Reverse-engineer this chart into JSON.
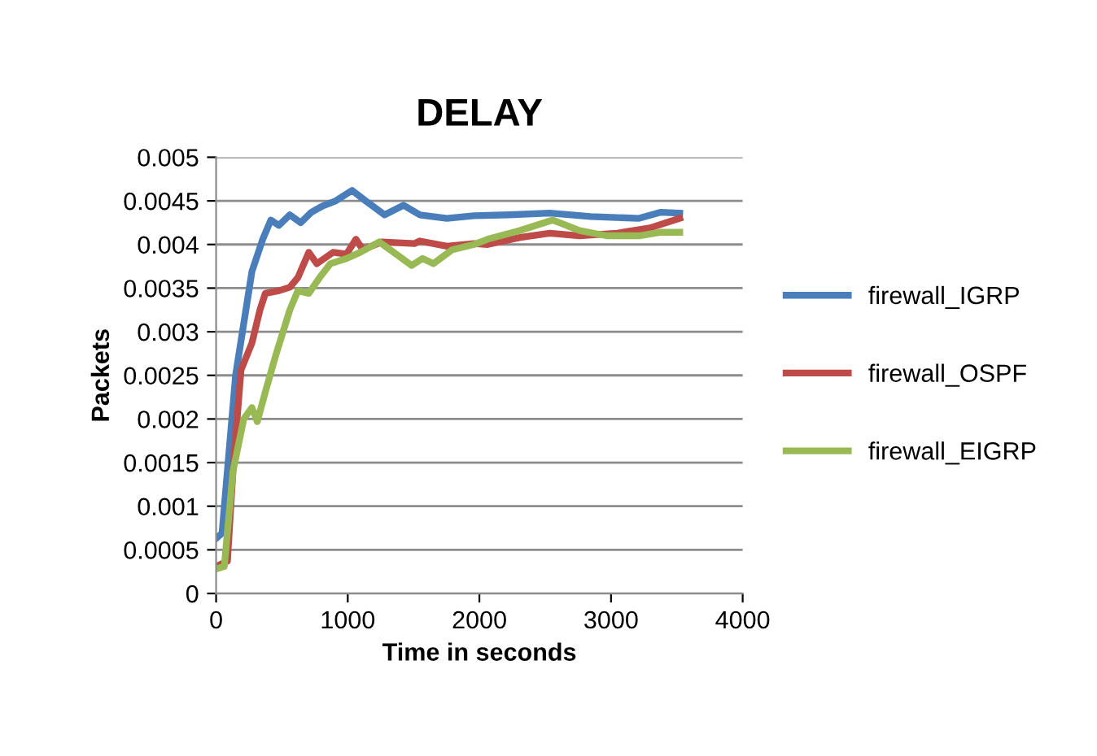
{
  "chart_data": {
    "type": "line",
    "title": "DELAY",
    "xlabel": "Time in seconds",
    "ylabel": "Packets",
    "xlim": [
      0,
      4000
    ],
    "xticks": [
      0,
      1000,
      2000,
      3000,
      4000
    ],
    "ylim": [
      0,
      0.005
    ],
    "yticks": [
      {
        "value": 0,
        "label": "0"
      },
      {
        "value": 0.0005,
        "label": "0.0005"
      },
      {
        "value": 0.001,
        "label": "0.001"
      },
      {
        "value": 0.0015,
        "label": "0.0015"
      },
      {
        "value": 0.002,
        "label": "0.002"
      },
      {
        "value": 0.0025,
        "label": "0.0025"
      },
      {
        "value": 0.003,
        "label": "0.003"
      },
      {
        "value": 0.0035,
        "label": "0.0035"
      },
      {
        "value": 0.004,
        "label": "0.004"
      },
      {
        "value": 0.0045,
        "label": "0.0045"
      },
      {
        "value": 0.005,
        "label": "0.005"
      }
    ],
    "grid": "y",
    "legend": "right",
    "marker": "none",
    "line_style": "solid",
    "series": [
      {
        "name": "firewall_IGRP",
        "color": "#4a7ebb",
        "x": [
          0,
          45,
          148,
          272,
          354,
          416,
          477,
          560,
          642,
          724,
          806,
          909,
          1033,
          1136,
          1280,
          1424,
          1547,
          1753,
          1959,
          2226,
          2535,
          2844,
          3214,
          3379,
          3522
        ],
        "values": [
          0.00063,
          0.00069,
          0.0025,
          0.00369,
          0.00406,
          0.00428,
          0.00422,
          0.00434,
          0.00425,
          0.00437,
          0.00444,
          0.0045,
          0.00462,
          0.0045,
          0.00434,
          0.00445,
          0.00434,
          0.0043,
          0.00433,
          0.00434,
          0.00436,
          0.00432,
          0.0043,
          0.00437,
          0.00436
        ]
      },
      {
        "name": "firewall_OSPF",
        "color": "#be4b48",
        "x": [
          0,
          86,
          128,
          189,
          272,
          333,
          374,
          477,
          560,
          621,
          704,
          765,
          889,
          991,
          1062,
          1115,
          1259,
          1506,
          1547,
          1753,
          1959,
          2062,
          2309,
          2535,
          2761,
          3049,
          3296,
          3522
        ],
        "values": [
          0.00031,
          0.00037,
          0.0014,
          0.00256,
          0.00287,
          0.00325,
          0.00344,
          0.00347,
          0.00351,
          0.00362,
          0.00391,
          0.00378,
          0.00391,
          0.00389,
          0.00406,
          0.00394,
          0.00403,
          0.00401,
          0.00404,
          0.00398,
          0.00401,
          0.004,
          0.00408,
          0.00413,
          0.0041,
          0.00413,
          0.00419,
          0.0043
        ]
      },
      {
        "name": "firewall_EIGRP",
        "color": "#98b954",
        "x": [
          0,
          62,
          128,
          210,
          272,
          313,
          374,
          457,
          560,
          621,
          704,
          786,
          868,
          991,
          1095,
          1239,
          1321,
          1486,
          1568,
          1650,
          1794,
          1959,
          2062,
          2309,
          2556,
          2761,
          2967,
          3214,
          3379,
          3522
        ],
        "values": [
          0.00028,
          0.00031,
          0.0014,
          0.002,
          0.00213,
          0.00197,
          0.00231,
          0.00275,
          0.00325,
          0.00347,
          0.00344,
          0.00362,
          0.00378,
          0.00384,
          0.00391,
          0.00403,
          0.00394,
          0.00376,
          0.00384,
          0.00378,
          0.00394,
          0.004,
          0.00406,
          0.00416,
          0.00428,
          0.00416,
          0.0041,
          0.0041,
          0.00414,
          0.00414
        ]
      }
    ]
  }
}
